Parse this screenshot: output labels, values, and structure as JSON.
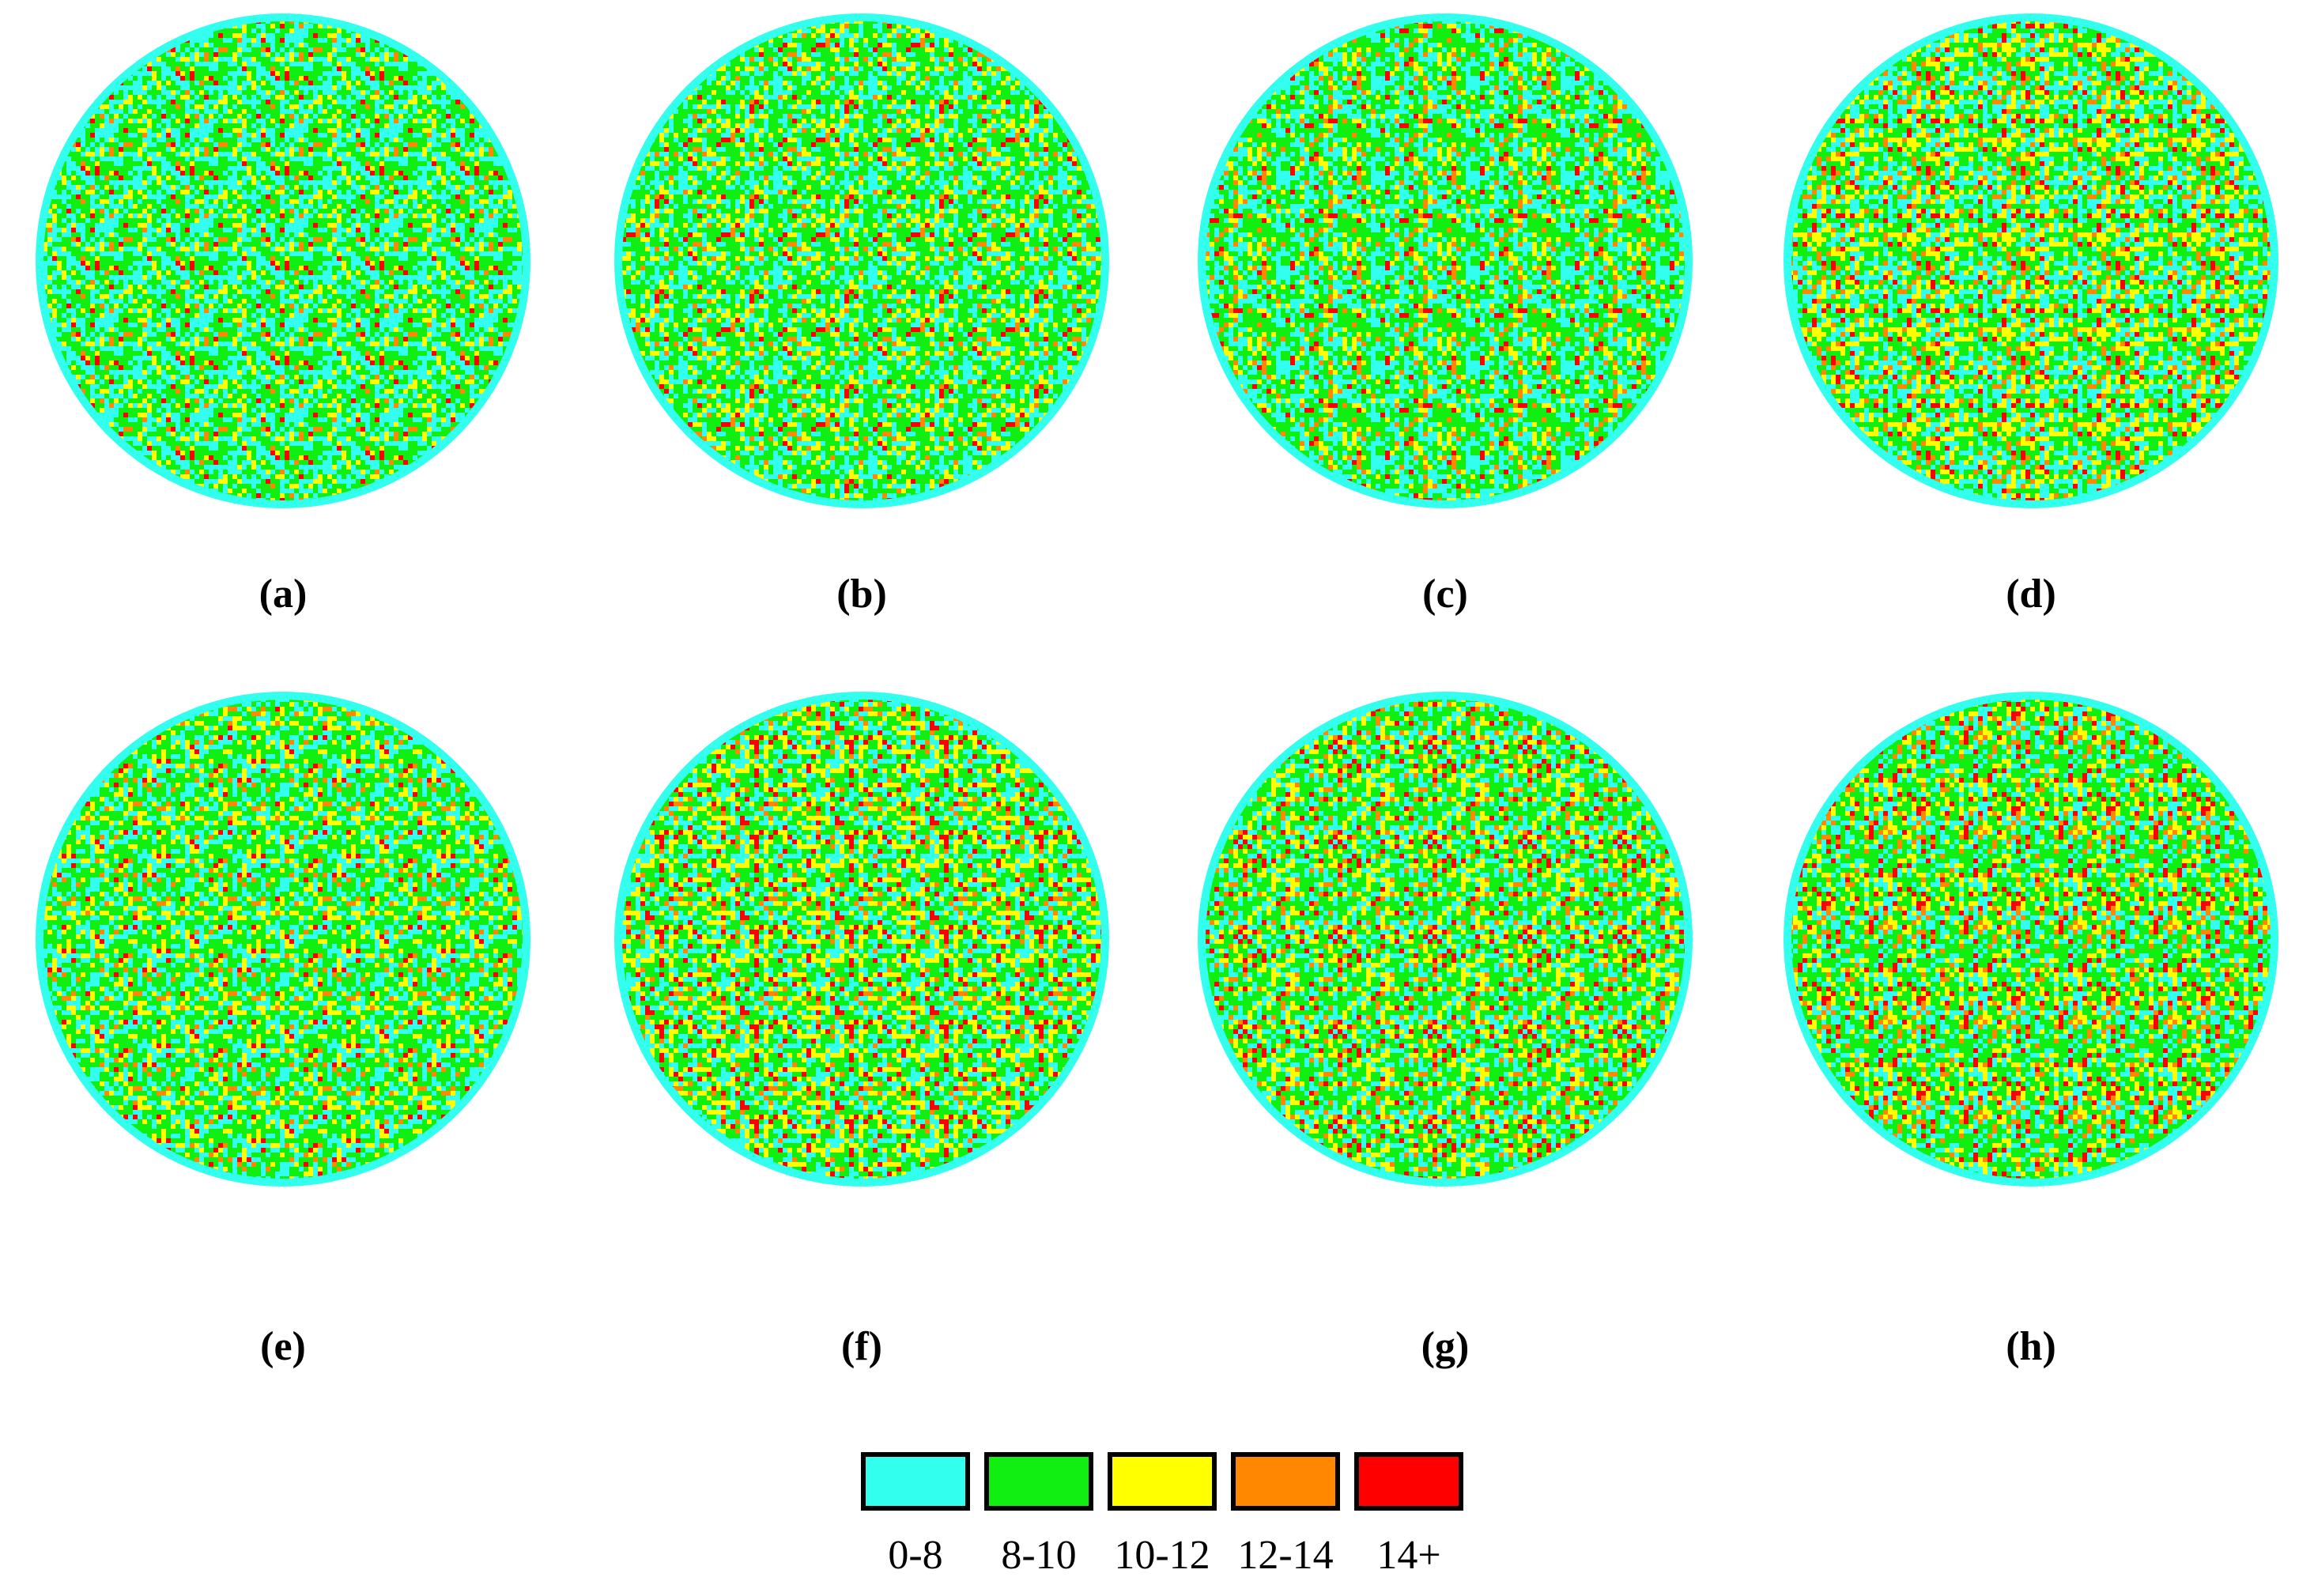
{
  "panels": [
    {
      "label": "(a)"
    },
    {
      "label": "(b)"
    },
    {
      "label": "(c)"
    },
    {
      "label": "(d)"
    },
    {
      "label": "(e)"
    },
    {
      "label": "(f)"
    },
    {
      "label": "(g)"
    },
    {
      "label": "(h)"
    }
  ],
  "legend": [
    {
      "label": "0-8",
      "color": "#33ffee"
    },
    {
      "label": "8-10",
      "color": "#11ee11"
    },
    {
      "label": "10-12",
      "color": "#ffff00"
    },
    {
      "label": "12-14",
      "color": "#ff8800"
    },
    {
      "label": "14+",
      "color": "#ff0000"
    }
  ]
}
